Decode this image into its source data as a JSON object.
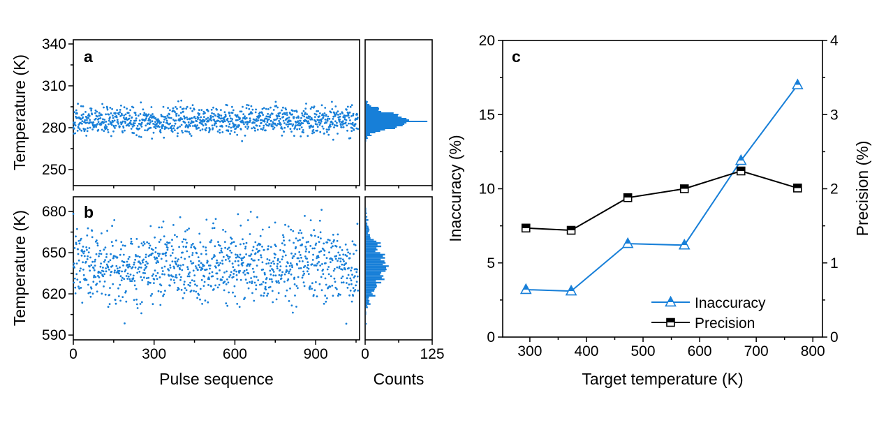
{
  "colors": {
    "blue": "#177fd8",
    "black": "#000000",
    "background": "#ffffff",
    "marker_half_fill": "#ffffff"
  },
  "chart_data": [
    {
      "id": "a",
      "type": "scatter",
      "panel_label": "a",
      "ylabel": "Temperature (K)",
      "xlim": [
        0,
        1063
      ],
      "xticks": [
        0,
        300,
        600,
        900
      ],
      "xminor": [
        150,
        450,
        750,
        1050
      ],
      "show_x_tick_labels": false,
      "ylim": [
        238.5,
        343
      ],
      "yticks": [
        250,
        280,
        310,
        340
      ],
      "yminor": [
        265,
        295,
        325
      ],
      "points_model": {
        "n": 1050,
        "mean": 285,
        "sd": 5,
        "seed": 42,
        "clip": [
          269,
          301
        ]
      },
      "histogram": {
        "bin_width": 1,
        "xlim": [
          0,
          125
        ],
        "xticks": [
          0,
          125
        ],
        "xminor": [
          62.5
        ],
        "mode_count": 115,
        "show_labels": false
      }
    },
    {
      "id": "b",
      "type": "scatter",
      "panel_label": "b",
      "ylabel": "Temperature (K)",
      "xlabel": "Pulse sequence",
      "xlim": [
        0,
        1063
      ],
      "xticks": [
        0,
        300,
        600,
        900
      ],
      "xminor": [
        150,
        450,
        750,
        1050
      ],
      "show_x_tick_labels": true,
      "ylim": [
        586.5,
        690.7
      ],
      "yticks": [
        590,
        620,
        650,
        680
      ],
      "yminor": [
        605,
        635,
        665
      ],
      "points_model": {
        "n": 1050,
        "mean": 641,
        "sd": 13.5,
        "seed": 7,
        "clip": [
          596,
          684
        ]
      },
      "histogram": {
        "bin_width": 1.2,
        "xlim": [
          0,
          125
        ],
        "xticks": [
          0,
          125
        ],
        "xminor": [
          62.5
        ],
        "mode_count": null,
        "show_labels": true,
        "xlabel": "Counts"
      }
    },
    {
      "id": "c",
      "type": "line",
      "panel_label": "c",
      "xlabel": "Target temperature (K)",
      "ylabel_left": "Inaccuracy (%)",
      "ylabel_right": "Precision (%)",
      "xlim": [
        252,
        817
      ],
      "xticks": [
        300,
        400,
        500,
        600,
        700,
        800
      ],
      "xminor": [
        350,
        450,
        550,
        650,
        750
      ],
      "ylim_left": [
        0,
        20
      ],
      "yticks_left": [
        0,
        5,
        10,
        15,
        20
      ],
      "yminor_left": [
        2.5,
        7.5,
        12.5,
        17.5
      ],
      "ylim_right": [
        0,
        4
      ],
      "yticks_right": [
        0,
        1,
        2,
        3,
        4
      ],
      "yminor_right": [
        0.5,
        1.5,
        2.5,
        3.5
      ],
      "x": [
        293,
        373,
        473,
        573,
        673,
        773
      ],
      "series": [
        {
          "name": "Inaccuracy",
          "axis": "left",
          "marker": "triangle-half-filled",
          "color": "#177fd8",
          "values": [
            3.2,
            3.1,
            6.3,
            6.2,
            11.9,
            17.0
          ]
        },
        {
          "name": "Precision",
          "axis": "right",
          "marker": "square-half-filled",
          "color": "#000000",
          "values": [
            1.47,
            1.44,
            1.88,
            2.0,
            2.24,
            2.01
          ]
        }
      ],
      "legend_position": "lower-right"
    }
  ]
}
